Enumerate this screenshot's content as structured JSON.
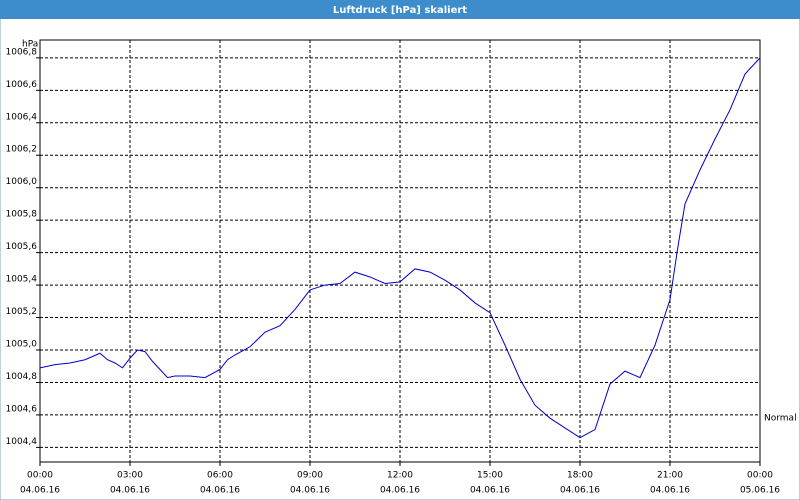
{
  "chart_data": {
    "type": "line",
    "title": "Luftdruck [hPa] skaliert",
    "ylabel": "hPa",
    "annotation": "Normal",
    "x": [
      0,
      0.5,
      1,
      1.5,
      2,
      2.25,
      2.5,
      2.75,
      3,
      3.25,
      3.5,
      3.75,
      4,
      4.25,
      4.5,
      5,
      5.5,
      6,
      6.25,
      6.5,
      7,
      7.5,
      8,
      8.5,
      9,
      9.5,
      10,
      10.5,
      11,
      11.5,
      12,
      12.5,
      13,
      13.5,
      14,
      14.5,
      15,
      15.5,
      16,
      16.5,
      17,
      17.5,
      18,
      18.5,
      19,
      19.5,
      20,
      20.5,
      21,
      21.25,
      21.5,
      22,
      22.5,
      23,
      23.5,
      24
    ],
    "series": [
      {
        "name": "Luftdruck",
        "color": "#0000cc",
        "values": [
          1004.89,
          1004.91,
          1004.92,
          1004.94,
          1004.98,
          1004.94,
          1004.92,
          1004.89,
          1004.95,
          1005.0,
          1004.99,
          1004.93,
          1004.88,
          1004.83,
          1004.84,
          1004.84,
          1004.83,
          1004.88,
          1004.94,
          1004.97,
          1005.02,
          1005.11,
          1005.15,
          1005.25,
          1005.37,
          1005.4,
          1005.41,
          1005.48,
          1005.45,
          1005.41,
          1005.42,
          1005.5,
          1005.48,
          1005.43,
          1005.37,
          1005.29,
          1005.23,
          1005.03,
          1004.82,
          1004.66,
          1004.58,
          1004.52,
          1004.46,
          1004.51,
          1004.79,
          1004.87,
          1004.83,
          1005.03,
          1005.31,
          1005.62,
          1005.9,
          1006.11,
          1006.3,
          1006.48,
          1006.7,
          1006.8
        ]
      }
    ],
    "xlim": [
      0,
      24
    ],
    "xticks": [
      {
        "value": 0,
        "label": "00:00"
      },
      {
        "value": 3,
        "label": "03:00"
      },
      {
        "value": 6,
        "label": "06:00"
      },
      {
        "value": 9,
        "label": "09:00"
      },
      {
        "value": 12,
        "label": "12:00"
      },
      {
        "value": 15,
        "label": "15:00"
      },
      {
        "value": 18,
        "label": "18:00"
      },
      {
        "value": 21,
        "label": "21:00"
      },
      {
        "value": 24,
        "label": "00:00"
      }
    ],
    "xtick_dates": [
      "04.06.16",
      "04.06.16",
      "04.06.16",
      "04.06.16",
      "04.06.16",
      "04.06.16",
      "04.06.16",
      "04.06.16",
      "05.06.16"
    ],
    "ylim": [
      1004.31,
      1006.91
    ],
    "yticks": [
      {
        "value": 1004.4,
        "label": "1004,4"
      },
      {
        "value": 1004.6,
        "label": "1004,6"
      },
      {
        "value": 1004.8,
        "label": "1004,8"
      },
      {
        "value": 1005.0,
        "label": "1005,0"
      },
      {
        "value": 1005.2,
        "label": "1005,2"
      },
      {
        "value": 1005.4,
        "label": "1005,4"
      },
      {
        "value": 1005.6,
        "label": "1005,6"
      },
      {
        "value": 1005.8,
        "label": "1005,8"
      },
      {
        "value": 1006.0,
        "label": "1006,0"
      },
      {
        "value": 1006.2,
        "label": "1006,2"
      },
      {
        "value": 1006.4,
        "label": "1006,4"
      },
      {
        "value": 1006.6,
        "label": "1006,6"
      },
      {
        "value": 1006.8,
        "label": "1006,8"
      }
    ],
    "grid": true
  }
}
